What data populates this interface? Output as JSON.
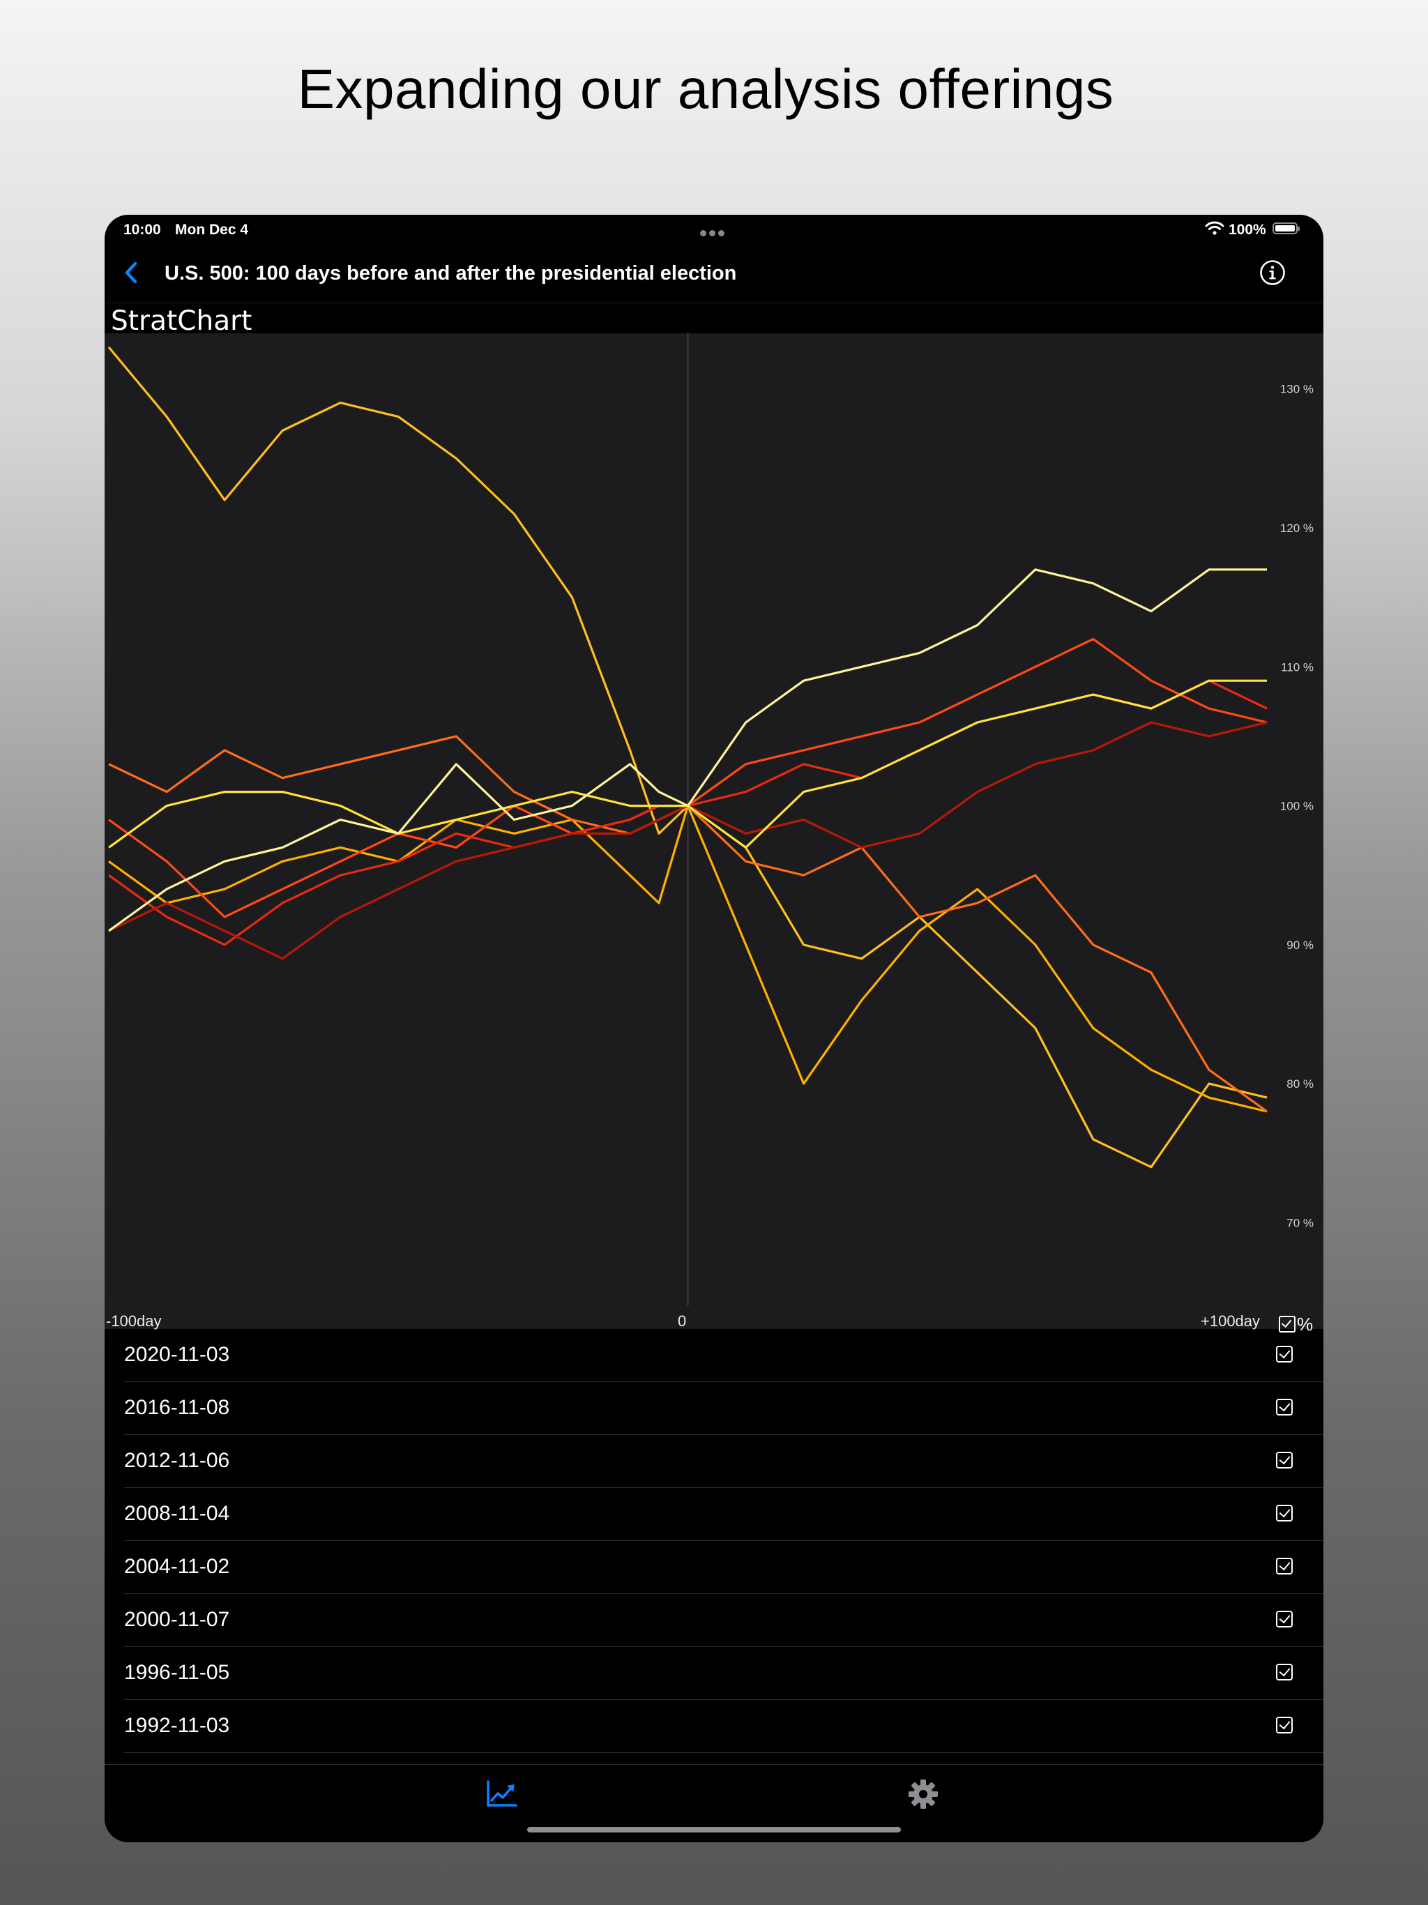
{
  "headline": "Expanding our analysis offerings",
  "status_bar": {
    "time": "10:00",
    "date": "Mon Dec 4",
    "battery": "100%",
    "icons": [
      "multitask-dots-icon",
      "wifi-icon",
      "battery-icon"
    ]
  },
  "navigation": {
    "back_icon": "chevron-left-icon",
    "title": "U.S. 500: 100 days before and after the presidential election",
    "info_icon": "info-icon"
  },
  "brand": "StratChart",
  "chart_data": {
    "type": "line",
    "x_label_left": "-100day",
    "x_label_center": "0",
    "x_label_right": "+100day",
    "x_range": [
      -100,
      100
    ],
    "ylim": [
      64,
      134
    ],
    "y_ticks": [
      130,
      120,
      110,
      100,
      90,
      80,
      70
    ],
    "y_tick_labels": [
      "130 %",
      "120 %",
      "110 %",
      "100 %",
      "90 %",
      "80 %",
      "70 %"
    ],
    "grid": false,
    "percent_toggle": {
      "label": "%",
      "checked": true
    },
    "series": [
      {
        "color": "#ffbf1f",
        "x": [
          -100,
          -90,
          -80,
          -70,
          -60,
          -50,
          -40,
          -30,
          -20,
          -10,
          -5,
          0,
          10,
          20,
          30,
          40,
          50,
          60,
          70,
          80,
          90,
          100
        ],
        "values": [
          133,
          128,
          122,
          127,
          129,
          128,
          125,
          121,
          115,
          104,
          98,
          100,
          97,
          90,
          89,
          92,
          88,
          84,
          76,
          74,
          80,
          79
        ]
      },
      {
        "color": "#ffb000",
        "x": [
          -100,
          -90,
          -80,
          -70,
          -60,
          -50,
          -40,
          -30,
          -20,
          -10,
          -5,
          0,
          10,
          20,
          30,
          40,
          50,
          60,
          70,
          80,
          90,
          100
        ],
        "values": [
          96,
          93,
          94,
          96,
          97,
          96,
          99,
          98,
          99,
          95,
          93,
          100,
          90,
          80,
          86,
          91,
          94,
          90,
          84,
          81,
          79,
          78
        ]
      },
      {
        "color": "#ff6d1a",
        "x": [
          -100,
          -90,
          -80,
          -70,
          -60,
          -50,
          -40,
          -30,
          -20,
          -10,
          -5,
          0,
          10,
          20,
          30,
          40,
          50,
          60,
          70,
          80,
          90,
          100
        ],
        "values": [
          103,
          101,
          104,
          102,
          103,
          104,
          105,
          101,
          99,
          98,
          99,
          100,
          96,
          95,
          97,
          92,
          93,
          95,
          90,
          88,
          81,
          78
        ]
      },
      {
        "color": "#ff4a14",
        "x": [
          -100,
          -90,
          -80,
          -70,
          -60,
          -50,
          -40,
          -30,
          -20,
          -10,
          -5,
          0,
          10,
          20,
          30,
          40,
          50,
          60,
          70,
          80,
          90,
          100
        ],
        "values": [
          99,
          96,
          92,
          94,
          96,
          98,
          97,
          100,
          98,
          99,
          100,
          100,
          103,
          104,
          105,
          106,
          108,
          110,
          112,
          109,
          107,
          106
        ]
      },
      {
        "color": "#e82a10",
        "x": [
          -100,
          -90,
          -80,
          -70,
          -60,
          -50,
          -40,
          -30,
          -20,
          -10,
          -5,
          0,
          10,
          20,
          30,
          40,
          50,
          60,
          70,
          80,
          90,
          100
        ],
        "values": [
          95,
          92,
          90,
          93,
          95,
          96,
          98,
          97,
          98,
          99,
          100,
          100,
          101,
          103,
          102,
          104,
          106,
          107,
          108,
          107,
          109,
          107
        ]
      },
      {
        "color": "#b81808",
        "x": [
          -100,
          -90,
          -80,
          -70,
          -60,
          -50,
          -40,
          -30,
          -20,
          -10,
          -5,
          0,
          10,
          20,
          30,
          40,
          50,
          60,
          70,
          80,
          90,
          100
        ],
        "values": [
          91,
          93,
          91,
          89,
          92,
          94,
          96,
          97,
          98,
          98,
          99,
          100,
          98,
          99,
          97,
          98,
          101,
          103,
          104,
          106,
          105,
          106
        ]
      },
      {
        "color": "#ffe23d",
        "x": [
          -100,
          -90,
          -80,
          -70,
          -60,
          -50,
          -40,
          -30,
          -20,
          -10,
          -5,
          0,
          10,
          20,
          30,
          40,
          50,
          60,
          70,
          80,
          90,
          100
        ],
        "values": [
          97,
          100,
          101,
          101,
          100,
          98,
          99,
          100,
          101,
          100,
          100,
          100,
          97,
          101,
          102,
          104,
          106,
          107,
          108,
          107,
          109,
          109
        ]
      },
      {
        "color": "#fff39a",
        "x": [
          -100,
          -90,
          -80,
          -70,
          -60,
          -50,
          -40,
          -30,
          -20,
          -10,
          -5,
          0,
          10,
          20,
          30,
          40,
          50,
          60,
          70,
          80,
          90,
          100
        ],
        "values": [
          91,
          94,
          96,
          97,
          99,
          98,
          103,
          99,
          100,
          103,
          101,
          100,
          106,
          109,
          110,
          111,
          113,
          117,
          116,
          114,
          117,
          117
        ]
      }
    ]
  },
  "election_list": [
    {
      "date": "2020-11-03",
      "checked": true
    },
    {
      "date": "2016-11-08",
      "checked": true
    },
    {
      "date": "2012-11-06",
      "checked": true
    },
    {
      "date": "2008-11-04",
      "checked": true
    },
    {
      "date": "2004-11-02",
      "checked": true
    },
    {
      "date": "2000-11-07",
      "checked": true
    },
    {
      "date": "1996-11-05",
      "checked": true
    },
    {
      "date": "1992-11-03",
      "checked": true
    }
  ],
  "tab_bar": {
    "tabs": [
      {
        "icon": "chart-line-icon",
        "active": true,
        "color": "#0a84ff"
      },
      {
        "icon": "gear-icon",
        "active": false,
        "color": "#8e8e93"
      }
    ]
  }
}
